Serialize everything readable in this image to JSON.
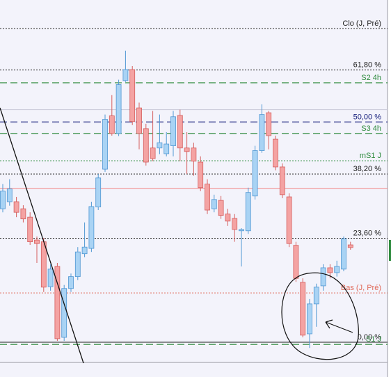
{
  "chart_data": {
    "type": "candlestick",
    "ylim": [
      -7.9,
      77.7
    ],
    "colors": {
      "up": "#a9d3f4",
      "up_edge": "#4f97d3",
      "down": "#f4a3a3",
      "down_edge": "#d55c5c"
    },
    "series": {
      "open": [
        30.3,
        31.9,
        31.9,
        30.3,
        28.4,
        23.2,
        22.8,
        12.6,
        17.2,
        1.1,
        12.2,
        14.9,
        20.1,
        21.3,
        30.7,
        39.3,
        51.4,
        47.4,
        59.4,
        61.9,
        53.2,
        48.5,
        44.1,
        44.1,
        42.8,
        44.6,
        51.5,
        44.1,
        44.1,
        40.9,
        35.9,
        30.3,
        32.2,
        29.1,
        28.1,
        25.3,
        25.3,
        33.2,
        43.5,
        52.1,
        46.1,
        39.8,
        33.0,
        22.0,
        13.6,
        1.9,
        8.7,
        12.8,
        16.9,
        15.8,
        16.6,
        22.1
      ],
      "high": [
        35.9,
        37.0,
        33.0,
        31.1,
        29.5,
        24.0,
        23.7,
        17.7,
        18.0,
        13.0,
        15.6,
        21.6,
        27.2,
        31.9,
        38.2,
        51.7,
        56.1,
        59.6,
        66.2,
        62.7,
        54.4,
        49.6,
        52.5,
        51.7,
        47.7,
        52.5,
        52.8,
        47.7,
        45.3,
        42.2,
        37.0,
        33.5,
        33.2,
        30.3,
        29.1,
        25.9,
        35.1,
        44.6,
        54.0,
        52.5,
        46.9,
        40.6,
        33.8,
        22.8,
        14.5,
        9.8,
        13.3,
        17.7,
        17.7,
        18.5,
        24.0,
        22.8
      ],
      "low": [
        29.5,
        31.0,
        28.4,
        27.2,
        22.1,
        18.0,
        11.4,
        11.7,
        0.3,
        0.3,
        11.4,
        14.1,
        19.3,
        20.5,
        30.0,
        38.7,
        46.9,
        46.8,
        59.1,
        49.3,
        43.8,
        40.1,
        41.1,
        42.7,
        42.2,
        42.2,
        41.1,
        38.2,
        37.8,
        34.3,
        29.1,
        29.5,
        28.0,
        26.4,
        22.8,
        17.2,
        24.6,
        32.4,
        43.0,
        43.8,
        39.0,
        32.7,
        21.6,
        13.7,
        1.1,
        -1.3,
        3.5,
        11.7,
        14.5,
        14.9,
        16.1,
        21.0
      ],
      "close": [
        34.3,
        34.8,
        29.5,
        28.0,
        22.8,
        22.4,
        12.5,
        16.6,
        0.8,
        12.2,
        14.9,
        20.5,
        21.6,
        30.8,
        37.3,
        50.6,
        47.4,
        58.5,
        61.9,
        50.1,
        47.4,
        40.9,
        41.7,
        45.3,
        45.0,
        51.2,
        44.1,
        43.3,
        41.1,
        35.1,
        30.0,
        32.4,
        28.8,
        27.5,
        25.6,
        25.6,
        34.0,
        43.5,
        51.7,
        46.9,
        39.8,
        33.5,
        22.4,
        14.5,
        1.6,
        8.7,
        12.5,
        16.9,
        15.8,
        17.2,
        23.5,
        21.5
      ]
    },
    "levels": [
      {
        "label": "Clo (J, Pré)",
        "value": 71.2,
        "color": "#222222",
        "style": "dotted"
      },
      {
        "label": "61,80 %",
        "value": 61.8,
        "color": "#222222",
        "style": "dotted"
      },
      {
        "label": "S2 4h",
        "value": 58.9,
        "color": "#2e8b3e",
        "style": "dashed"
      },
      {
        "label": "50,00 %",
        "value": 50.0,
        "color": "#1a237e",
        "style": "dashed"
      },
      {
        "label": "S3 4h",
        "value": 47.4,
        "color": "#2e8b3e",
        "style": "dashed"
      },
      {
        "label": "mS1 J",
        "value": 41.2,
        "color": "#2e8b3e",
        "style": "dotted"
      },
      {
        "label": "38,20 %",
        "value": 38.2,
        "color": "#222222",
        "style": "dotted"
      },
      {
        "label": "23,60 %",
        "value": 23.6,
        "color": "#222222",
        "style": "dotted"
      },
      {
        "label": "Bas (J, Pré)",
        "value": 11.2,
        "color": "#e06a5a",
        "style": "dotted"
      },
      {
        "label": "0,00 %",
        "value": 0.0,
        "color": "#222222",
        "style": "solid"
      },
      {
        "label": "S1 J",
        "value": -0.5,
        "color": "#2e8b3e",
        "style": "dashed"
      }
    ],
    "lines": [
      {
        "value": 34.9,
        "color": "#f08080"
      },
      {
        "value": 52.8,
        "color": "#c8c8d8"
      },
      {
        "value": -4.6,
        "color": "#a0a0a8"
      }
    ]
  }
}
